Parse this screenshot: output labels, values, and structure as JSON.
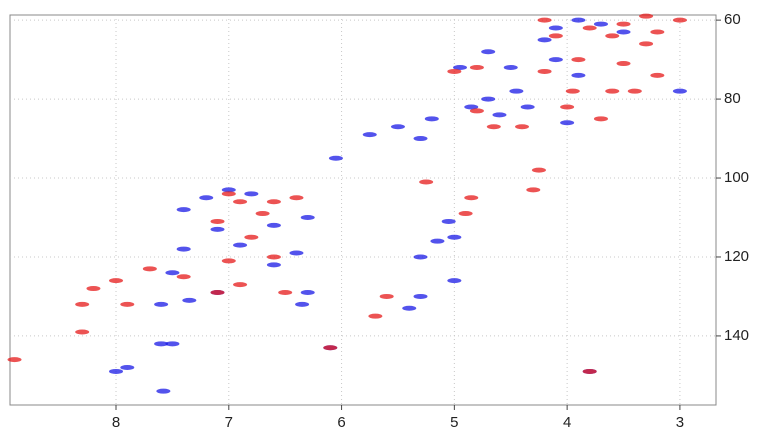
{
  "chart_data": {
    "type": "scatter",
    "xlim": [
      8.94,
      2.68
    ],
    "ylim": [
      157.5,
      58.7
    ],
    "xticks": [
      8,
      7,
      6,
      5,
      4,
      3
    ],
    "yticks": [
      60,
      80,
      100,
      120,
      140
    ],
    "y_axis_side": "right",
    "grid": true,
    "series": [
      {
        "color": "#1a1ae6",
        "x": [
          3.9,
          3.7,
          4.1,
          3.5,
          4.2,
          4.7,
          4.95,
          4.5,
          3.9,
          4.1,
          4.7,
          4.35,
          4.0,
          4.6,
          4.85,
          5.5,
          5.75,
          5.2,
          6.05,
          5.05,
          5.0,
          5.15,
          5.3,
          5.0,
          5.3,
          5.4,
          6.3,
          6.35,
          6.6,
          6.4,
          7.0,
          7.2,
          6.8,
          7.4,
          6.6,
          6.3,
          7.1,
          6.9,
          7.4,
          7.5,
          7.1,
          7.6,
          7.35,
          7.5,
          7.6,
          7.9,
          8.0,
          7.58,
          6.1,
          3.8,
          4.45,
          3.0,
          5.3
        ],
        "values": [
          60,
          61,
          62,
          63,
          65,
          68,
          72,
          72,
          74,
          70,
          80,
          82,
          86,
          84,
          82,
          87,
          89,
          85,
          95,
          111,
          115,
          116,
          120,
          126,
          130,
          133,
          129,
          132,
          122,
          119,
          103,
          105,
          104,
          108,
          112,
          110,
          113,
          117,
          118,
          124,
          129,
          132,
          131,
          142,
          142,
          148,
          149,
          154,
          143,
          149,
          78,
          78,
          90
        ]
      },
      {
        "color": "#e61a1a",
        "x": [
          3.3,
          3.0,
          3.5,
          3.2,
          3.6,
          3.3,
          3.8,
          4.2,
          4.1,
          3.9,
          3.5,
          3.2,
          3.4,
          3.6,
          4.2,
          4.8,
          5.0,
          4.8,
          4.65,
          4.4,
          4.0,
          3.95,
          3.7,
          4.3,
          4.25,
          4.85,
          4.9,
          5.25,
          6.6,
          6.4,
          6.9,
          6.7,
          7.0,
          7.1,
          6.8,
          6.6,
          7.0,
          6.9,
          7.1,
          7.4,
          7.7,
          8.0,
          8.2,
          8.3,
          7.9,
          6.5,
          5.6,
          5.7,
          6.1,
          8.9,
          8.3,
          3.8
        ],
        "values": [
          59,
          60,
          61,
          63,
          64,
          66,
          62,
          60,
          64,
          70,
          71,
          74,
          78,
          78,
          73,
          72,
          73,
          83,
          87,
          87,
          82,
          78,
          85,
          103,
          98,
          105,
          109,
          101,
          106,
          105,
          106,
          109,
          104,
          111,
          115,
          120,
          121,
          127,
          129,
          125,
          123,
          126,
          128,
          132,
          132,
          129,
          130,
          135,
          143,
          146,
          139,
          149
        ]
      }
    ]
  }
}
